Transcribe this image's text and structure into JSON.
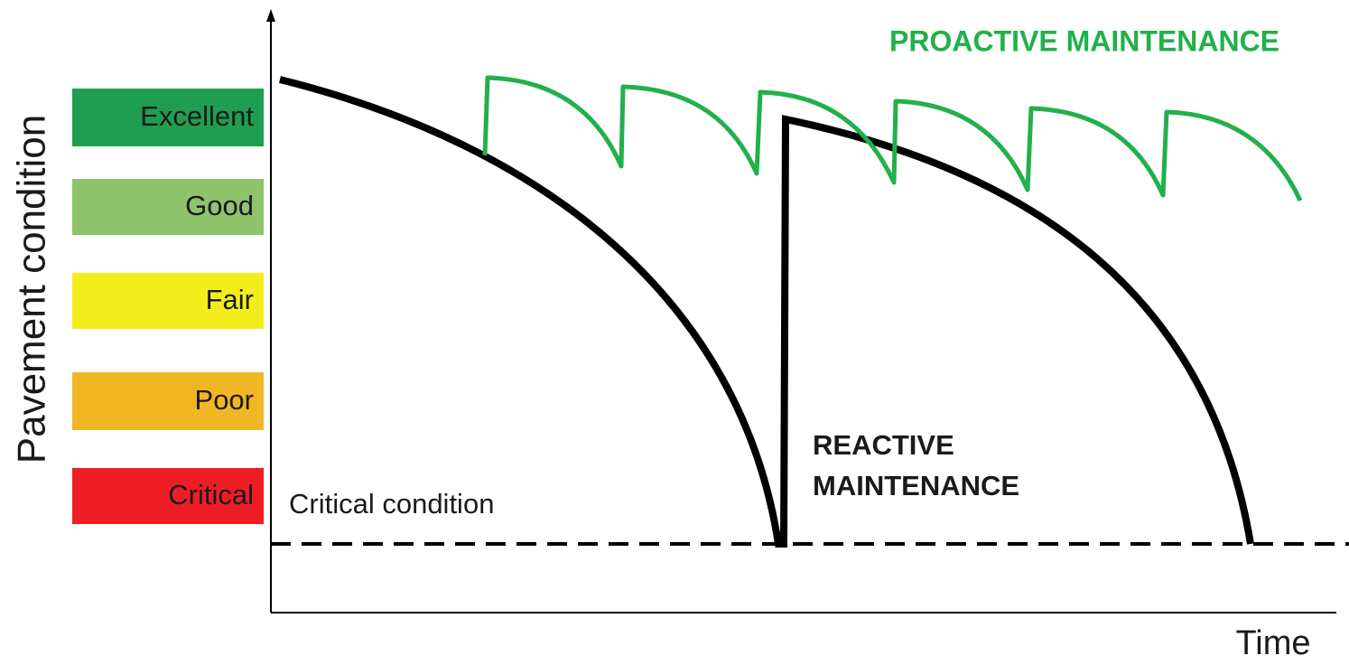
{
  "y_axis_label": "Pavement condition",
  "x_axis_label": "Time",
  "conditions": [
    "Excellent",
    "Good",
    "Fair",
    "Poor",
    "Critical"
  ],
  "annotations": {
    "proactive": "PROACTIVE  MAINTENANCE",
    "reactive_line1": "REACTIVE",
    "reactive_line2": "MAINTENANCE",
    "critical": "Critical condition"
  }
}
